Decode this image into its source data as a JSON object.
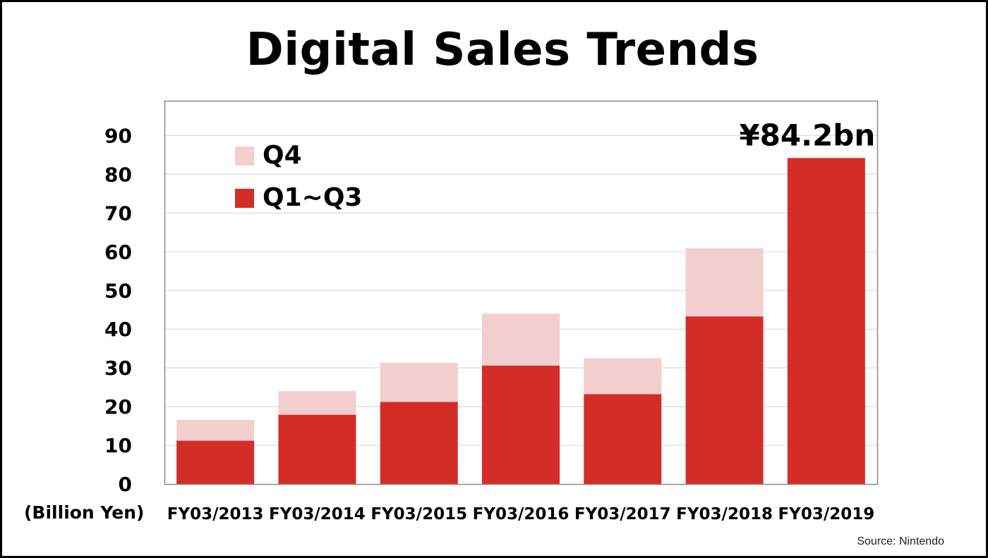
{
  "chart_data": {
    "type": "bar",
    "stacked": true,
    "title": "Digital Sales Trends",
    "ylabel": "(Billion Yen)",
    "xlabel": "",
    "ylim": [
      0,
      99
    ],
    "yticks": [
      "0",
      "10",
      "20",
      "30",
      "40",
      "50",
      "60",
      "70",
      "80",
      "90"
    ],
    "grid": true,
    "legend_position": "top-left",
    "categories": [
      "FY03/2013",
      "FY03/2014",
      "FY03/2015",
      "FY03/2016",
      "FY03/2017",
      "FY03/2018",
      "FY03/2019"
    ],
    "series": [
      {
        "name": "Q1~Q3",
        "color": "#d42d28",
        "values": [
          11.2,
          17.9,
          21.2,
          30.6,
          23.2,
          43.3,
          84.2
        ]
      },
      {
        "name": "Q4",
        "color": "#f3cfcf",
        "values": [
          5.4,
          6.1,
          10.1,
          13.4,
          9.3,
          17.6,
          0
        ]
      }
    ],
    "annotation": {
      "text": "¥84.2bn",
      "category": "FY03/2019"
    }
  },
  "source": "Source: Nintendo"
}
